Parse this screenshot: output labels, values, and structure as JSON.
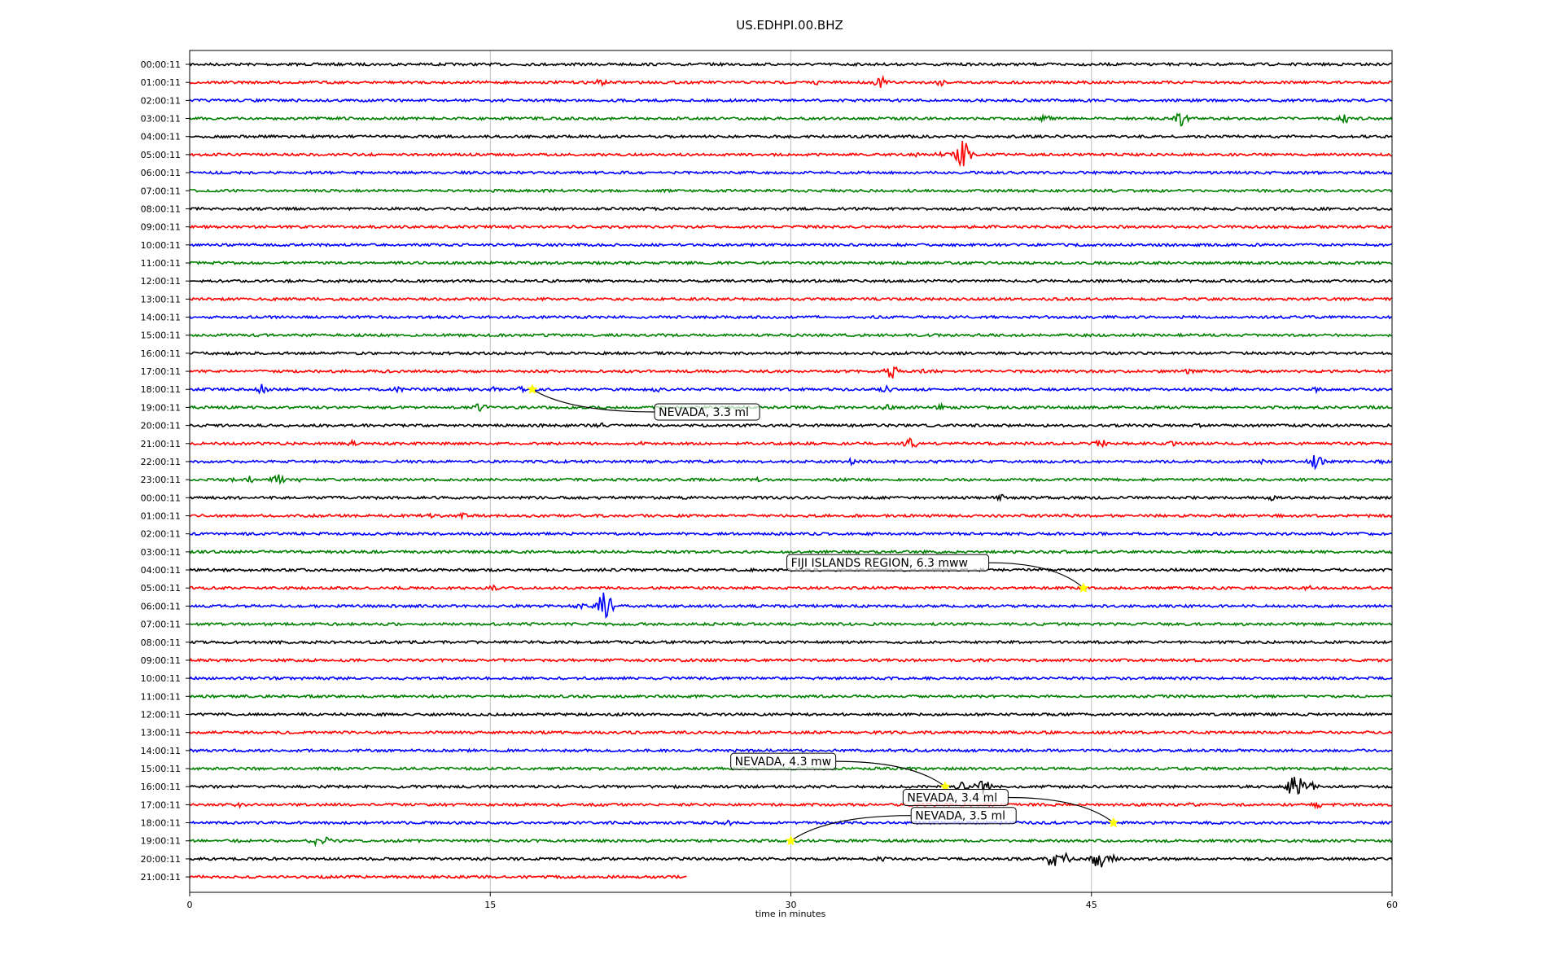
{
  "chart_data": {
    "type": "line",
    "title": "US.EDHPI.00.BHZ",
    "xlabel": "time in minutes",
    "ylabel": "",
    "xlim": [
      0,
      60
    ],
    "xticks": [
      "0",
      "15",
      "30",
      "45",
      "60"
    ],
    "grid": "vertical",
    "trace_colors": [
      "#000000",
      "#ff0000",
      "#0000ff",
      "#008000"
    ],
    "star_color": "#ffff00",
    "hours": [
      {
        "label": "00:00:11",
        "end": 60
      },
      {
        "label": "01:00:11",
        "end": 60,
        "bursts": [
          [
            20.5,
            5
          ],
          [
            31.3,
            3
          ],
          [
            34.5,
            8
          ],
          [
            37.5,
            5
          ]
        ]
      },
      {
        "label": "02:00:11",
        "end": 60
      },
      {
        "label": "03:00:11",
        "end": 60,
        "bursts": [
          [
            42.7,
            5
          ],
          [
            49.5,
            10
          ],
          [
            57.7,
            6
          ]
        ]
      },
      {
        "label": "04:00:11",
        "end": 60
      },
      {
        "label": "05:00:11",
        "end": 60,
        "bursts": [
          [
            36.2,
            3
          ],
          [
            37.5,
            5
          ],
          [
            38.6,
            20
          ]
        ]
      },
      {
        "label": "06:00:11",
        "end": 60
      },
      {
        "label": "07:00:11",
        "end": 60
      },
      {
        "label": "08:00:11",
        "end": 60
      },
      {
        "label": "09:00:11",
        "end": 60
      },
      {
        "label": "10:00:11",
        "end": 60
      },
      {
        "label": "11:00:11",
        "end": 60
      },
      {
        "label": "12:00:11",
        "end": 60
      },
      {
        "label": "13:00:11",
        "end": 60
      },
      {
        "label": "14:00:11",
        "end": 60
      },
      {
        "label": "15:00:11",
        "end": 60
      },
      {
        "label": "16:00:11",
        "end": 60
      },
      {
        "label": "17:00:11",
        "end": 60,
        "bursts": [
          [
            35.0,
            11
          ],
          [
            36.5,
            6
          ],
          [
            49.9,
            4
          ]
        ]
      },
      {
        "label": "18:00:11",
        "end": 60,
        "bursts": [
          [
            3.6,
            7
          ],
          [
            10.4,
            4
          ],
          [
            15.2,
            4
          ],
          [
            16.5,
            4
          ],
          [
            23.3,
            4
          ],
          [
            34.8,
            6
          ],
          [
            56.2,
            4
          ]
        ]
      },
      {
        "label": "19:00:11",
        "end": 60,
        "bursts": [
          [
            14.5,
            7
          ],
          [
            34.8,
            5
          ],
          [
            37.5,
            4
          ]
        ]
      },
      {
        "label": "20:00:11",
        "end": 60,
        "bursts": [
          [
            20.5,
            4
          ],
          [
            50.3,
            3
          ]
        ]
      },
      {
        "label": "21:00:11",
        "end": 60,
        "bursts": [
          [
            3.5,
            3
          ],
          [
            8.1,
            4
          ],
          [
            22.5,
            3
          ],
          [
            36.0,
            8
          ],
          [
            45.5,
            6
          ],
          [
            49.0,
            4
          ]
        ]
      },
      {
        "label": "22:00:11",
        "end": 60,
        "bursts": [
          [
            33.0,
            4
          ],
          [
            53.5,
            3
          ],
          [
            56.2,
            10
          ],
          [
            59.5,
            3
          ]
        ]
      },
      {
        "label": "23:00:11",
        "end": 60,
        "bursts": [
          [
            2.0,
            4
          ],
          [
            3.0,
            5
          ],
          [
            4.4,
            7
          ],
          [
            5.5,
            3
          ],
          [
            28.3,
            3
          ]
        ]
      },
      {
        "label": "00:00:11",
        "end": 60,
        "bursts": [
          [
            40.6,
            5
          ],
          [
            54.0,
            4
          ]
        ]
      },
      {
        "label": "01:00:11",
        "end": 60,
        "bursts": [
          [
            12.0,
            3
          ],
          [
            13.6,
            4
          ]
        ]
      },
      {
        "label": "02:00:11",
        "end": 60
      },
      {
        "label": "03:00:11",
        "end": 60
      },
      {
        "label": "04:00:11",
        "end": 60
      },
      {
        "label": "05:00:11",
        "end": 60,
        "bursts": [
          [
            15.2,
            4
          ],
          [
            55.8,
            4
          ],
          [
            58.8,
            3
          ]
        ]
      },
      {
        "label": "06:00:11",
        "end": 60,
        "bursts": [
          [
            19.5,
            5
          ],
          [
            20.7,
            22
          ]
        ]
      },
      {
        "label": "07:00:11",
        "end": 60
      },
      {
        "label": "08:00:11",
        "end": 60
      },
      {
        "label": "09:00:11",
        "end": 60
      },
      {
        "label": "10:00:11",
        "end": 60
      },
      {
        "label": "11:00:11",
        "end": 60
      },
      {
        "label": "12:00:11",
        "end": 60
      },
      {
        "label": "13:00:11",
        "end": 60
      },
      {
        "label": "14:00:11",
        "end": 60
      },
      {
        "label": "15:00:11",
        "end": 60
      },
      {
        "label": "16:00:11",
        "end": 60,
        "bursts": [
          [
            38.5,
            6
          ],
          [
            39.6,
            12
          ],
          [
            55.2,
            20
          ],
          [
            56.0,
            6
          ]
        ]
      },
      {
        "label": "17:00:11",
        "end": 60,
        "bursts": [
          [
            2.5,
            4
          ],
          [
            50.0,
            4
          ],
          [
            56.3,
            5
          ]
        ]
      },
      {
        "label": "18:00:11",
        "end": 60,
        "bursts": [
          [
            26.9,
            4
          ]
        ]
      },
      {
        "label": "19:00:11",
        "end": 60,
        "bursts": [
          [
            2.3,
            3
          ],
          [
            6.2,
            6
          ],
          [
            6.8,
            5
          ]
        ]
      },
      {
        "label": "20:00:11",
        "end": 60,
        "bursts": [
          [
            34.5,
            4
          ],
          [
            43.1,
            14
          ],
          [
            43.6,
            9
          ],
          [
            45.4,
            16
          ],
          [
            46.0,
            6
          ]
        ]
      },
      {
        "label": "21:00:11",
        "end": 24.8
      }
    ],
    "events": [
      {
        "label": "NEVADA, 3.3 ml",
        "hour": 18,
        "minute": 17.1,
        "text_minute": 23.2,
        "text_row": 19.25
      },
      {
        "label": "FIJI ISLANDS REGION, 6.3 mww",
        "hour": 29,
        "minute": 44.6,
        "text_minute": 29.8,
        "text_row": 27.6
      },
      {
        "label": "NEVADA, 4.3 mw",
        "hour": 40,
        "minute": 37.7,
        "text_minute": 27.0,
        "text_row": 38.6
      },
      {
        "label": "NEVADA, 3.4 ml",
        "hour": 42,
        "minute": 46.1,
        "text_minute": 35.6,
        "text_row": 40.6
      },
      {
        "label": "NEVADA, 3.5 ml",
        "hour": 43,
        "minute": 30.0,
        "text_minute": 36.0,
        "text_row": 41.6
      }
    ]
  }
}
